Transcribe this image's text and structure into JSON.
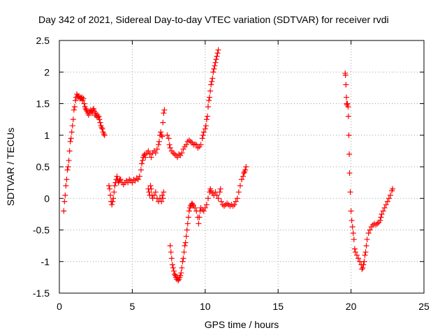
{
  "chart_data": {
    "type": "scatter",
    "title": "Day 342 of 2021, Sidereal Day-to-day VTEC variation (SDTVAR) for receiver rvdi",
    "xlabel": "GPS time / hours",
    "ylabel": "SDTVAR / TECUs",
    "xlim": [
      0,
      25
    ],
    "ylim": [
      -1.5,
      2.5
    ],
    "xticks": [
      0,
      5,
      10,
      15,
      20,
      25
    ],
    "yticks": [
      -1.5,
      -1,
      -0.5,
      0,
      0.5,
      1,
      1.5,
      2,
      2.5
    ],
    "grid": true,
    "marker": "+",
    "color": "#ff0000",
    "series": [
      {
        "points": [
          [
            0.3,
            -0.2
          ],
          [
            0.35,
            -0.05
          ],
          [
            0.4,
            0.05
          ],
          [
            0.45,
            0.2
          ],
          [
            0.5,
            0.3
          ],
          [
            0.55,
            0.45
          ],
          [
            0.6,
            0.5
          ],
          [
            0.65,
            0.6
          ],
          [
            0.7,
            0.75
          ],
          [
            0.75,
            0.9
          ],
          [
            0.8,
            0.95
          ],
          [
            0.85,
            1.05
          ],
          [
            0.9,
            1.15
          ],
          [
            0.95,
            1.25
          ],
          [
            1.0,
            1.4
          ],
          [
            1.05,
            1.45
          ],
          [
            1.1,
            1.55
          ],
          [
            1.15,
            1.6
          ],
          [
            1.2,
            1.65
          ],
          [
            1.25,
            1.62
          ],
          [
            1.3,
            1.6
          ],
          [
            1.35,
            1.62
          ],
          [
            1.4,
            1.58
          ],
          [
            1.45,
            1.6
          ],
          [
            1.5,
            1.58
          ],
          [
            1.55,
            1.6
          ],
          [
            1.6,
            1.55
          ],
          [
            1.65,
            1.58
          ],
          [
            1.7,
            1.5
          ],
          [
            1.75,
            1.45
          ],
          [
            1.8,
            1.42
          ],
          [
            1.85,
            1.4
          ],
          [
            1.9,
            1.38
          ],
          [
            1.95,
            1.35
          ],
          [
            2.0,
            1.32
          ],
          [
            2.05,
            1.38
          ],
          [
            2.1,
            1.35
          ],
          [
            2.15,
            1.4
          ],
          [
            2.2,
            1.38
          ],
          [
            2.25,
            1.35
          ],
          [
            2.3,
            1.4
          ],
          [
            2.35,
            1.42
          ],
          [
            2.4,
            1.38
          ],
          [
            2.45,
            1.32
          ],
          [
            2.5,
            1.35
          ],
          [
            2.55,
            1.3
          ],
          [
            2.6,
            1.32
          ],
          [
            2.65,
            1.28
          ],
          [
            2.7,
            1.3
          ],
          [
            2.75,
            1.25
          ],
          [
            2.8,
            1.2
          ],
          [
            2.85,
            1.15
          ],
          [
            2.9,
            1.12
          ],
          [
            2.95,
            1.1
          ],
          [
            3.0,
            1.05
          ],
          [
            3.05,
            1.02
          ],
          [
            3.1,
            1.0
          ]
        ]
      },
      {
        "points": [
          [
            3.4,
            0.2
          ],
          [
            3.45,
            0.15
          ],
          [
            3.5,
            0.05
          ],
          [
            3.55,
            -0.05
          ],
          [
            3.6,
            -0.1
          ],
          [
            3.65,
            -0.05
          ],
          [
            3.7,
            0.0
          ],
          [
            3.75,
            0.1
          ],
          [
            3.8,
            0.2
          ],
          [
            3.85,
            0.25
          ],
          [
            3.9,
            0.3
          ],
          [
            3.95,
            0.35
          ],
          [
            4.0,
            0.3
          ],
          [
            4.05,
            0.25
          ],
          [
            4.1,
            0.28
          ],
          [
            4.15,
            0.3
          ],
          [
            4.2,
            0.3
          ],
          [
            4.3,
            0.25
          ],
          [
            4.4,
            0.22
          ],
          [
            4.5,
            0.25
          ],
          [
            4.6,
            0.28
          ],
          [
            4.7,
            0.25
          ],
          [
            4.8,
            0.3
          ],
          [
            4.9,
            0.28
          ],
          [
            5.0,
            0.25
          ],
          [
            5.1,
            0.3
          ],
          [
            5.2,
            0.28
          ],
          [
            5.3,
            0.32
          ],
          [
            5.4,
            0.3
          ],
          [
            5.5,
            0.35
          ],
          [
            5.6,
            0.45
          ],
          [
            5.65,
            0.55
          ],
          [
            5.7,
            0.6
          ],
          [
            5.75,
            0.65
          ],
          [
            5.8,
            0.68
          ],
          [
            5.85,
            0.7
          ],
          [
            5.9,
            0.65
          ],
          [
            6.0,
            0.72
          ],
          [
            6.1,
            0.75
          ],
          [
            6.2,
            0.7
          ],
          [
            6.3,
            0.65
          ],
          [
            6.4,
            0.72
          ],
          [
            6.5,
            0.75
          ],
          [
            6.6,
            0.72
          ],
          [
            6.7,
            0.78
          ],
          [
            6.8,
            0.85
          ],
          [
            6.85,
            0.9
          ],
          [
            6.9,
            1.0
          ],
          [
            6.95,
            1.05
          ],
          [
            7.0,
            1.0
          ],
          [
            7.05,
            0.98
          ],
          [
            7.1,
            1.2
          ],
          [
            7.15,
            1.35
          ],
          [
            7.2,
            1.4
          ]
        ]
      },
      {
        "points": [
          [
            6.1,
            0.15
          ],
          [
            6.15,
            0.1
          ],
          [
            6.2,
            0.05
          ],
          [
            6.25,
            0.2
          ],
          [
            6.3,
            0.15
          ],
          [
            6.35,
            0.05
          ],
          [
            6.4,
            0.0
          ],
          [
            6.5,
            0.05
          ],
          [
            6.6,
            0.1
          ],
          [
            6.7,
            0.0
          ],
          [
            6.8,
            -0.05
          ],
          [
            6.9,
            0.0
          ],
          [
            7.0,
            -0.05
          ],
          [
            7.05,
            0.05
          ],
          [
            7.1,
            0.0
          ],
          [
            7.15,
            0.1
          ]
        ]
      },
      {
        "points": [
          [
            7.4,
            1.0
          ],
          [
            7.5,
            0.95
          ],
          [
            7.55,
            0.85
          ],
          [
            7.6,
            0.8
          ],
          [
            7.7,
            0.75
          ],
          [
            7.8,
            0.72
          ],
          [
            7.9,
            0.7
          ],
          [
            8.0,
            0.68
          ],
          [
            8.1,
            0.65
          ],
          [
            8.2,
            0.7
          ],
          [
            8.3,
            0.68
          ],
          [
            8.4,
            0.72
          ],
          [
            8.5,
            0.78
          ],
          [
            8.6,
            0.82
          ],
          [
            8.7,
            0.85
          ],
          [
            8.8,
            0.9
          ],
          [
            8.9,
            0.92
          ],
          [
            9.0,
            0.9
          ],
          [
            9.1,
            0.88
          ],
          [
            9.2,
            0.85
          ],
          [
            9.3,
            0.86
          ],
          [
            9.4,
            0.85
          ],
          [
            9.5,
            0.8
          ],
          [
            9.6,
            0.82
          ],
          [
            9.7,
            0.85
          ],
          [
            9.8,
            0.95
          ],
          [
            9.85,
            1.0
          ],
          [
            9.9,
            1.05
          ],
          [
            10.0,
            1.1
          ],
          [
            10.05,
            1.15
          ],
          [
            10.1,
            1.25
          ],
          [
            10.15,
            1.3
          ],
          [
            10.2,
            1.45
          ],
          [
            10.25,
            1.55
          ],
          [
            10.3,
            1.6
          ],
          [
            10.35,
            1.7
          ],
          [
            10.4,
            1.8
          ],
          [
            10.45,
            1.85
          ],
          [
            10.5,
            1.9
          ],
          [
            10.55,
            2.0
          ],
          [
            10.6,
            2.05
          ],
          [
            10.65,
            2.1
          ],
          [
            10.7,
            2.15
          ],
          [
            10.75,
            2.2
          ],
          [
            10.8,
            2.25
          ],
          [
            10.85,
            2.3
          ],
          [
            10.9,
            2.35
          ]
        ]
      },
      {
        "points": [
          [
            7.6,
            -0.75
          ],
          [
            7.65,
            -0.85
          ],
          [
            7.7,
            -0.95
          ],
          [
            7.75,
            -1.05
          ],
          [
            7.8,
            -1.1
          ],
          [
            7.85,
            -1.15
          ],
          [
            7.9,
            -1.2
          ],
          [
            7.95,
            -1.22
          ],
          [
            8.0,
            -1.25
          ],
          [
            8.05,
            -1.28
          ],
          [
            8.1,
            -1.25
          ],
          [
            8.15,
            -1.3
          ],
          [
            8.2,
            -1.28
          ],
          [
            8.25,
            -1.25
          ],
          [
            8.3,
            -1.22
          ],
          [
            8.35,
            -1.18
          ],
          [
            8.4,
            -1.1
          ],
          [
            8.45,
            -1.0
          ],
          [
            8.5,
            -0.95
          ],
          [
            8.55,
            -0.85
          ],
          [
            8.6,
            -0.75
          ],
          [
            8.65,
            -0.7
          ],
          [
            8.7,
            -0.6
          ],
          [
            8.75,
            -0.5
          ],
          [
            8.8,
            -0.4
          ],
          [
            8.85,
            -0.3
          ],
          [
            8.9,
            -0.2
          ],
          [
            8.95,
            -0.15
          ],
          [
            9.0,
            -0.12
          ],
          [
            9.05,
            -0.1
          ],
          [
            9.1,
            -0.08
          ],
          [
            9.15,
            -0.1
          ],
          [
            9.2,
            -0.12
          ],
          [
            9.3,
            -0.15
          ],
          [
            9.4,
            -0.2
          ],
          [
            9.5,
            -0.3
          ],
          [
            9.55,
            -0.4
          ],
          [
            9.6,
            -0.3
          ],
          [
            9.65,
            -0.2
          ],
          [
            9.7,
            -0.15
          ],
          [
            9.8,
            -0.18
          ],
          [
            9.9,
            -0.2
          ],
          [
            10.0,
            -0.15
          ],
          [
            10.1,
            -0.1
          ],
          [
            10.2,
            0.0
          ],
          [
            10.3,
            0.1
          ],
          [
            10.35,
            0.15
          ],
          [
            10.4,
            0.12
          ],
          [
            10.5,
            0.08
          ],
          [
            10.6,
            0.05
          ],
          [
            10.7,
            0.1
          ],
          [
            10.8,
            0.05
          ],
          [
            10.9,
            0.0
          ],
          [
            11.0,
            0.1
          ],
          [
            11.05,
            0.15
          ],
          [
            11.1,
            -0.05
          ],
          [
            11.2,
            -0.1
          ],
          [
            11.3,
            -0.12
          ],
          [
            11.4,
            -0.1
          ],
          [
            11.5,
            -0.08
          ],
          [
            11.6,
            -0.1
          ],
          [
            11.7,
            -0.12
          ],
          [
            11.8,
            -0.1
          ],
          [
            11.9,
            -0.12
          ],
          [
            12.0,
            -0.1
          ],
          [
            12.1,
            -0.05
          ],
          [
            12.2,
            0.0
          ],
          [
            12.3,
            0.1
          ],
          [
            12.4,
            0.2
          ],
          [
            12.5,
            0.3
          ],
          [
            12.6,
            0.35
          ],
          [
            12.65,
            0.4
          ],
          [
            12.7,
            0.42
          ],
          [
            12.75,
            0.45
          ],
          [
            12.8,
            0.5
          ]
        ]
      },
      {
        "points": [
          [
            19.6,
            1.98
          ],
          [
            19.62,
            1.95
          ],
          [
            19.65,
            1.8
          ],
          [
            19.68,
            1.6
          ],
          [
            19.7,
            1.5
          ],
          [
            19.72,
            1.48
          ],
          [
            19.75,
            1.5
          ],
          [
            19.8,
            1.45
          ],
          [
            19.82,
            1.3
          ],
          [
            19.85,
            1.0
          ],
          [
            19.88,
            0.7
          ],
          [
            19.9,
            0.4
          ],
          [
            19.95,
            0.1
          ],
          [
            20.0,
            -0.2
          ],
          [
            20.05,
            -0.35
          ],
          [
            20.1,
            -0.45
          ],
          [
            20.15,
            -0.55
          ],
          [
            20.2,
            -0.65
          ],
          [
            20.25,
            -0.8
          ],
          [
            20.3,
            -0.85
          ],
          [
            20.4,
            -0.9
          ],
          [
            20.5,
            -0.95
          ],
          [
            20.6,
            -1.0
          ],
          [
            20.7,
            -1.05
          ],
          [
            20.75,
            -1.12
          ],
          [
            20.8,
            -1.1
          ],
          [
            20.85,
            -1.05
          ],
          [
            20.9,
            -1.0
          ],
          [
            20.95,
            -0.9
          ],
          [
            21.0,
            -0.85
          ],
          [
            21.05,
            -0.75
          ],
          [
            21.1,
            -0.65
          ],
          [
            21.2,
            -0.55
          ],
          [
            21.3,
            -0.5
          ],
          [
            21.4,
            -0.45
          ],
          [
            21.5,
            -0.42
          ],
          [
            21.6,
            -0.4
          ],
          [
            21.7,
            -0.42
          ],
          [
            21.8,
            -0.4
          ],
          [
            21.9,
            -0.38
          ],
          [
            22.0,
            -0.35
          ],
          [
            22.05,
            -0.3
          ],
          [
            22.1,
            -0.25
          ],
          [
            22.2,
            -0.2
          ],
          [
            22.3,
            -0.15
          ],
          [
            22.4,
            -0.1
          ],
          [
            22.5,
            -0.05
          ],
          [
            22.6,
            0.0
          ],
          [
            22.7,
            0.05
          ],
          [
            22.8,
            0.12
          ],
          [
            22.85,
            0.15
          ]
        ]
      }
    ]
  }
}
